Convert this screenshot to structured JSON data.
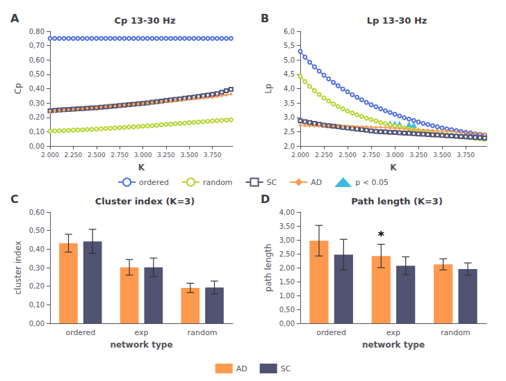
{
  "chart_data": [
    {
      "type": "line",
      "panel_label": "A",
      "title": "Cp 13-30 Hz",
      "xlabel": "K",
      "ylabel": "Cp",
      "x": [
        2.0,
        2.05,
        2.1,
        2.15,
        2.2,
        2.25,
        2.3,
        2.35,
        2.4,
        2.45,
        2.5,
        2.55,
        2.6,
        2.65,
        2.7,
        2.75,
        2.8,
        2.85,
        2.9,
        2.95,
        3.0,
        3.05,
        3.1,
        3.15,
        3.2,
        3.25,
        3.3,
        3.35,
        3.4,
        3.45,
        3.5,
        3.55,
        3.6,
        3.65,
        3.7,
        3.75,
        3.8,
        3.85,
        3.9,
        3.95
      ],
      "series": [
        {
          "name": "ordered",
          "values": [
            0.75,
            0.75,
            0.75,
            0.75,
            0.75,
            0.75,
            0.75,
            0.75,
            0.75,
            0.75,
            0.75,
            0.75,
            0.75,
            0.75,
            0.75,
            0.75,
            0.75,
            0.75,
            0.75,
            0.75,
            0.75,
            0.75,
            0.75,
            0.75,
            0.75,
            0.75,
            0.75,
            0.75,
            0.75,
            0.75,
            0.75,
            0.75,
            0.75,
            0.75,
            0.75,
            0.75,
            0.75,
            0.75,
            0.75,
            0.75
          ]
        },
        {
          "name": "random",
          "marker": "circle",
          "values": [
            0.103,
            0.105,
            0.107,
            0.108,
            0.109,
            0.111,
            0.112,
            0.113,
            0.115,
            0.116,
            0.118,
            0.12,
            0.122,
            0.124,
            0.126,
            0.128,
            0.13,
            0.132,
            0.134,
            0.136,
            0.138,
            0.14,
            0.142,
            0.145,
            0.148,
            0.15,
            0.153,
            0.155,
            0.158,
            0.16,
            0.163,
            0.165,
            0.167,
            0.17,
            0.172,
            0.175,
            0.177,
            0.179,
            0.181,
            0.183
          ]
        },
        {
          "name": "SC",
          "marker": "square",
          "values": [
            0.245,
            0.248,
            0.251,
            0.253,
            0.255,
            0.257,
            0.259,
            0.261,
            0.263,
            0.265,
            0.267,
            0.27,
            0.273,
            0.276,
            0.279,
            0.282,
            0.285,
            0.288,
            0.291,
            0.294,
            0.297,
            0.301,
            0.305,
            0.309,
            0.313,
            0.317,
            0.321,
            0.325,
            0.329,
            0.333,
            0.337,
            0.341,
            0.345,
            0.35,
            0.355,
            0.36,
            0.365,
            0.375,
            0.385,
            0.395
          ]
        },
        {
          "name": "AD",
          "marker": "diamond",
          "values": [
            0.237,
            0.242,
            0.247,
            0.25,
            0.252,
            0.254,
            0.257,
            0.26,
            0.263,
            0.265,
            0.268,
            0.271,
            0.274,
            0.277,
            0.279,
            0.282,
            0.285,
            0.287,
            0.29,
            0.292,
            0.295,
            0.298,
            0.301,
            0.304,
            0.307,
            0.31,
            0.313,
            0.316,
            0.319,
            0.322,
            0.325,
            0.328,
            0.331,
            0.334,
            0.337,
            0.34,
            0.345,
            0.35,
            0.355,
            0.362
          ]
        }
      ],
      "xlim": [
        2.0,
        3.97
      ],
      "xticks": [
        {
          "value": 2.0,
          "label": "2.000"
        },
        {
          "value": 2.25,
          "label": "2.250"
        },
        {
          "value": 2.5,
          "label": "2.500"
        },
        {
          "value": 2.75,
          "label": "2.750"
        },
        {
          "value": 3.0,
          "label": "3.000"
        },
        {
          "value": 3.25,
          "label": "3.250"
        },
        {
          "value": 3.5,
          "label": "3.500"
        },
        {
          "value": 3.75,
          "label": "3.750"
        }
      ],
      "ylim": [
        0.0,
        0.8
      ],
      "yticks": [
        {
          "value": 0.0,
          "label": "0,00"
        },
        {
          "value": 0.1,
          "label": "0,10"
        },
        {
          "value": 0.2,
          "label": "0,20"
        },
        {
          "value": 0.3,
          "label": "0,30"
        },
        {
          "value": 0.4,
          "label": "0,40"
        },
        {
          "value": 0.5,
          "label": "0,50"
        },
        {
          "value": 0.6,
          "label": "0,60"
        },
        {
          "value": 0.7,
          "label": "0,70"
        },
        {
          "value": 0.8,
          "label": "0,80"
        }
      ],
      "grid": false,
      "legend": "bottom"
    },
    {
      "type": "line",
      "panel_label": "B",
      "title": "Lp 13-30 Hz",
      "xlabel": "K",
      "ylabel": "Lp",
      "x": [
        2.0,
        2.05,
        2.1,
        2.15,
        2.2,
        2.25,
        2.3,
        2.35,
        2.4,
        2.45,
        2.5,
        2.55,
        2.6,
        2.65,
        2.7,
        2.75,
        2.8,
        2.85,
        2.9,
        2.95,
        3.0,
        3.05,
        3.1,
        3.15,
        3.2,
        3.25,
        3.3,
        3.35,
        3.4,
        3.45,
        3.5,
        3.55,
        3.6,
        3.65,
        3.7,
        3.75,
        3.8,
        3.85,
        3.9,
        3.95
      ],
      "series": [
        {
          "name": "ordered",
          "values": [
            5.3,
            5.1,
            4.92,
            4.76,
            4.61,
            4.47,
            4.34,
            4.22,
            4.1,
            3.99,
            3.89,
            3.79,
            3.7,
            3.61,
            3.52,
            3.44,
            3.37,
            3.3,
            3.23,
            3.17,
            3.11,
            3.05,
            2.99,
            2.94,
            2.89,
            2.84,
            2.79,
            2.75,
            2.71,
            2.67,
            2.63,
            2.6,
            2.57,
            2.54,
            2.51,
            2.48,
            2.46,
            2.43,
            2.41,
            2.39
          ]
        },
        {
          "name": "random",
          "marker": "circle",
          "values": [
            4.43,
            4.25,
            4.08,
            3.93,
            3.8,
            3.68,
            3.57,
            3.47,
            3.38,
            3.3,
            3.22,
            3.15,
            3.09,
            3.03,
            2.97,
            2.92,
            2.87,
            2.82,
            2.78,
            2.74,
            2.7,
            2.67,
            2.63,
            2.6,
            2.57,
            2.54,
            2.51,
            2.48,
            2.46,
            2.43,
            2.41,
            2.39,
            2.37,
            2.35,
            2.33,
            2.31,
            2.29,
            2.27,
            2.25,
            2.23
          ]
        },
        {
          "name": "SC",
          "marker": "square",
          "values": [
            2.88,
            2.85,
            2.82,
            2.79,
            2.76,
            2.73,
            2.71,
            2.69,
            2.67,
            2.65,
            2.63,
            2.61,
            2.59,
            2.57,
            2.55,
            2.53,
            2.51,
            2.5,
            2.49,
            2.48,
            2.47,
            2.46,
            2.45,
            2.44,
            2.43,
            2.42,
            2.41,
            2.4,
            2.39,
            2.38,
            2.37,
            2.36,
            2.35,
            2.34,
            2.33,
            2.32,
            2.31,
            2.3,
            2.29,
            2.28
          ]
        },
        {
          "name": "AD",
          "marker": "diamond",
          "values": [
            2.72,
            2.71,
            2.7,
            2.7,
            2.7,
            2.7,
            2.7,
            2.7,
            2.7,
            2.7,
            2.7,
            2.69,
            2.68,
            2.67,
            2.67,
            2.66,
            2.65,
            2.65,
            2.64,
            2.63,
            2.62,
            2.61,
            2.6,
            2.59,
            2.58,
            2.57,
            2.56,
            2.55,
            2.54,
            2.53,
            2.52,
            2.51,
            2.5,
            2.49,
            2.48,
            2.47,
            2.46,
            2.45,
            2.44,
            2.43
          ]
        },
        {
          "name": "p < 0.05",
          "type": "scatter",
          "marker": "triangle",
          "x": [
            2.95,
            3.0,
            3.05,
            3.15,
            3.2
          ],
          "values": [
            2.79,
            2.78,
            2.77,
            2.75,
            2.74
          ]
        }
      ],
      "xlim": [
        2.0,
        3.97
      ],
      "xticks": [
        {
          "value": 2.0,
          "label": "2.000"
        },
        {
          "value": 2.25,
          "label": "2.250"
        },
        {
          "value": 2.5,
          "label": "2.500"
        },
        {
          "value": 2.75,
          "label": "2.750"
        },
        {
          "value": 3.0,
          "label": "3.000"
        },
        {
          "value": 3.25,
          "label": "3.250"
        },
        {
          "value": 3.5,
          "label": "3.500"
        },
        {
          "value": 3.75,
          "label": "3.750"
        }
      ],
      "ylim": [
        2.0,
        6.0
      ],
      "yticks": [
        {
          "value": 2.0,
          "label": "2,0"
        },
        {
          "value": 2.5,
          "label": "2,5"
        },
        {
          "value": 3.0,
          "label": "3,0"
        },
        {
          "value": 3.5,
          "label": "3,5"
        },
        {
          "value": 4.0,
          "label": "4,0"
        },
        {
          "value": 4.5,
          "label": "4,5"
        },
        {
          "value": 5.0,
          "label": "5,0"
        },
        {
          "value": 5.5,
          "label": "5,5"
        },
        {
          "value": 6.0,
          "label": "6,0"
        }
      ],
      "grid": false,
      "legend": "bottom"
    },
    {
      "type": "bar",
      "panel_label": "C",
      "title": "Cluster index (K=3)",
      "xlabel": "network type",
      "ylabel": "cluster index",
      "categories": [
        "ordered",
        "exp",
        "random"
      ],
      "series": [
        {
          "name": "AD",
          "values": [
            0.432,
            0.302,
            0.191
          ],
          "errors": [
            0.048,
            0.042,
            0.025
          ]
        },
        {
          "name": "SC",
          "values": [
            0.442,
            0.302,
            0.193
          ],
          "errors": [
            0.065,
            0.05,
            0.035
          ]
        }
      ],
      "ylim": [
        0.0,
        0.6
      ],
      "yticks": [
        {
          "value": 0.0,
          "label": "0,00"
        },
        {
          "value": 0.1,
          "label": "0,10"
        },
        {
          "value": 0.2,
          "label": "0,20"
        },
        {
          "value": 0.3,
          "label": "0,30"
        },
        {
          "value": 0.4,
          "label": "0,40"
        },
        {
          "value": 0.5,
          "label": "0,50"
        },
        {
          "value": 0.6,
          "label": "0,60"
        }
      ],
      "grid": false,
      "legend": "bottom"
    },
    {
      "type": "bar",
      "panel_label": "D",
      "title": "Path length (K=3)",
      "xlabel": "network type",
      "ylabel": "path length",
      "categories": [
        "ordered",
        "exp",
        "random"
      ],
      "series": [
        {
          "name": "AD",
          "values": [
            2.97,
            2.42,
            2.12
          ],
          "errors": [
            0.55,
            0.42,
            0.2
          ]
        },
        {
          "name": "SC",
          "values": [
            2.47,
            2.07,
            1.95
          ],
          "errors": [
            0.55,
            0.32,
            0.22
          ]
        }
      ],
      "annotations": [
        {
          "text": "*",
          "category": "exp",
          "series": "AD",
          "y": 2.94
        }
      ],
      "ylim": [
        0.0,
        4.0
      ],
      "yticks": [
        {
          "value": 0.0,
          "label": "0,00"
        },
        {
          "value": 0.5,
          "label": "0,50"
        },
        {
          "value": 1.0,
          "label": "1,00"
        },
        {
          "value": 1.5,
          "label": "1,50"
        },
        {
          "value": 2.0,
          "label": "2,00"
        },
        {
          "value": 2.5,
          "label": "2,50"
        },
        {
          "value": 3.0,
          "label": "3,00"
        },
        {
          "value": 3.5,
          "label": "3,50"
        },
        {
          "value": 4.0,
          "label": "4,00"
        }
      ],
      "grid": false,
      "legend": "bottom"
    }
  ]
}
